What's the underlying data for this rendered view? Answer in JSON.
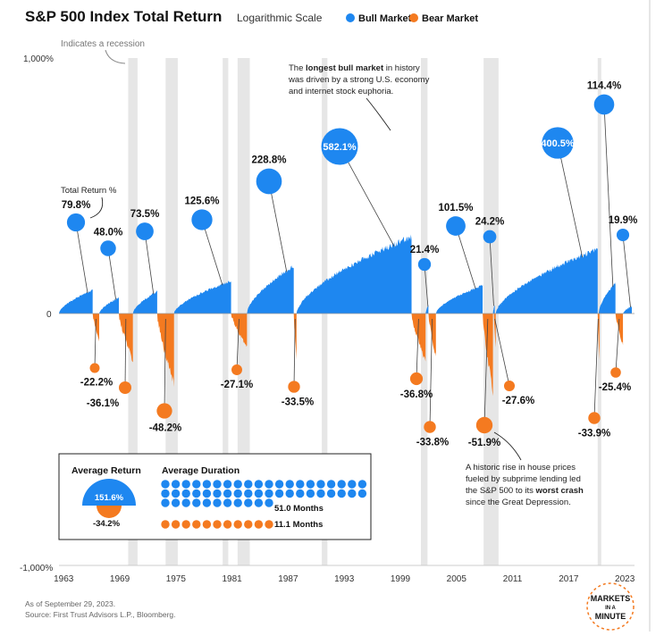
{
  "header": {
    "title": "S&P 500 Index Total Return",
    "subtitle": "Logarithmic Scale",
    "legend": [
      {
        "label": "Bull Market",
        "color": "#1e87f0"
      },
      {
        "label": "Bear Market",
        "color": "#f47a20"
      }
    ]
  },
  "recession_note": "Indicates a recession",
  "axis": {
    "y_top": "1,000%",
    "y_zero": "0",
    "y_bottom": "-1,000%",
    "x_ticks": [
      "1963",
      "1969",
      "1975",
      "1981",
      "1987",
      "1993",
      "1999",
      "2005",
      "2011",
      "2017",
      "2023"
    ]
  },
  "annotations": {
    "total_return": "Total Return %",
    "bull_note_pre": "The ",
    "bull_note_bold": "longest bull market",
    "bull_note_post": " in history",
    "bull_note_line2": "was driven by a strong U.S. economy",
    "bull_note_line3": "and internet stock euphoria.",
    "crash_line1": "A historic rise in house prices",
    "crash_line2": "fueled by subprime lending led",
    "crash_line3_pre": "the S&P 500 to its ",
    "crash_line3_bold": "worst crash",
    "crash_line4": "since the Great Depression."
  },
  "summary": {
    "avg_return_title": "Average Return",
    "avg_duration_title": "Average Duration",
    "bull_return": "151.6%",
    "bear_return": "-34.2%",
    "bull_duration": "51.0 Months",
    "bear_duration": "11.1 Months",
    "bull_months": 51.0,
    "bear_months": 11.1
  },
  "footer": {
    "date": "As of September 29, 2023.",
    "source": "Source: First Trust Advisors L.P., Bloomberg."
  },
  "logo": {
    "line1": "MARKETS",
    "line2": "IN A",
    "line3": "MINUTE"
  },
  "colors": {
    "bull": "#1e87f0",
    "bear": "#f47a20",
    "recession": "#e6e6e6"
  },
  "chart_data": {
    "type": "area",
    "title": "S&P 500 Index Total Return",
    "subtitle": "Logarithmic Scale",
    "y_scale": "log",
    "ylim": [
      "-1,000%",
      "1,000%"
    ],
    "x_range": [
      1963,
      2023
    ],
    "recessions": [
      [
        1969.9,
        1970.9
      ],
      [
        1973.9,
        1975.2
      ],
      [
        1980.0,
        1980.6
      ],
      [
        1981.6,
        1982.9
      ],
      [
        1990.6,
        1991.2
      ],
      [
        2001.2,
        2001.9
      ],
      [
        2007.9,
        2009.5
      ],
      [
        2020.1,
        2020.4
      ]
    ],
    "bull_markets": [
      {
        "start": 1962.5,
        "end": 1966.1,
        "return": 79.8,
        "label": "79.8%"
      },
      {
        "start": 1966.8,
        "end": 1968.9,
        "return": 48.0,
        "label": "48.0%"
      },
      {
        "start": 1970.4,
        "end": 1973.0,
        "return": 73.5,
        "label": "73.5%"
      },
      {
        "start": 1974.8,
        "end": 1980.9,
        "return": 125.6,
        "label": "125.6%"
      },
      {
        "start": 1982.6,
        "end": 1987.6,
        "return": 228.8,
        "label": "228.8%"
      },
      {
        "start": 1987.9,
        "end": 2000.2,
        "return": 582.1,
        "label": "582.1%"
      },
      {
        "start": 2001.7,
        "end": 2002.0,
        "return": 21.4,
        "label": "21.4%"
      },
      {
        "start": 2002.8,
        "end": 2007.8,
        "return": 101.5,
        "label": "101.5%"
      },
      {
        "start": 2008.9,
        "end": 2009.0,
        "return": 24.2,
        "label": "24.2%"
      },
      {
        "start": 2009.2,
        "end": 2020.1,
        "return": 400.5,
        "label": "400.5%"
      },
      {
        "start": 2020.2,
        "end": 2022.0,
        "return": 114.4,
        "label": "114.4%"
      },
      {
        "start": 2022.8,
        "end": 2023.75,
        "return": 19.9,
        "label": "19.9%"
      }
    ],
    "bear_markets": [
      {
        "start": 1966.1,
        "end": 1966.8,
        "return": -22.2,
        "label": "-22.2%"
      },
      {
        "start": 1968.9,
        "end": 1970.4,
        "return": -36.1,
        "label": "-36.1%"
      },
      {
        "start": 1973.0,
        "end": 1974.8,
        "return": -48.2,
        "label": "-48.2%"
      },
      {
        "start": 1980.9,
        "end": 1982.6,
        "return": -27.1,
        "label": "-27.1%"
      },
      {
        "start": 1987.6,
        "end": 1987.9,
        "return": -33.5,
        "label": "-33.5%"
      },
      {
        "start": 2000.2,
        "end": 2001.7,
        "return": -36.8,
        "label": "-36.8%"
      },
      {
        "start": 2002.0,
        "end": 2002.8,
        "return": -33.8,
        "label": "-33.8%"
      },
      {
        "start": 2007.8,
        "end": 2008.9,
        "return": -51.9,
        "label": "-51.9%"
      },
      {
        "start": 2009.0,
        "end": 2009.2,
        "return": -27.6,
        "label": "-27.6%"
      },
      {
        "start": 2020.1,
        "end": 2020.2,
        "return": -33.9,
        "label": "-33.9%"
      },
      {
        "start": 2022.0,
        "end": 2022.8,
        "return": -25.4,
        "label": "-25.4%"
      }
    ]
  }
}
